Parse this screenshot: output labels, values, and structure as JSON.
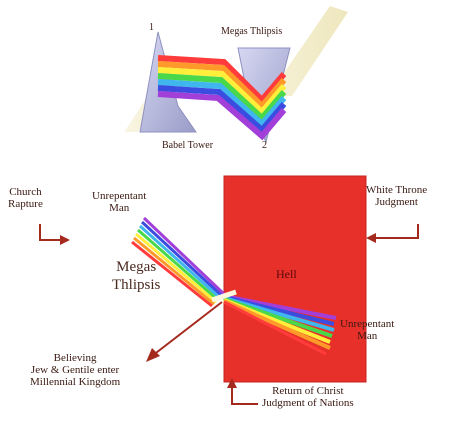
{
  "top_section": {
    "label_1": "1",
    "label_2": "2",
    "megas_thlipsis": "Megas Thlipsis",
    "babel_tower": "Babel Tower"
  },
  "bottom_section": {
    "church_rapture": [
      "Church",
      "Rapture"
    ],
    "unrepentant_man_top": [
      "Unrepentant",
      "Man"
    ],
    "megas_thlipsis": [
      "Megas",
      "Thlipsis"
    ],
    "hell": "Hell",
    "white_throne": [
      "White Throne",
      "Judgment"
    ],
    "unrepentant_man_right": [
      "Unrepentant",
      "Man"
    ],
    "believing": [
      "Believing",
      "Jew & Gentile enter",
      "Millennial Kingdom"
    ],
    "return_of_christ": [
      "Return of Christ",
      "Judgment of Nations"
    ]
  },
  "colors": {
    "hell_red": "#e8302a",
    "arrow_red": "#a52a1e",
    "beam_cream": "#f2ecc4",
    "prism_blue": "#b7b9e0",
    "spectrum": [
      "#ff3b3b",
      "#ff9a2a",
      "#ffee3a",
      "#48d84a",
      "#3fb6ee",
      "#3b4de0",
      "#a23fd8"
    ]
  }
}
